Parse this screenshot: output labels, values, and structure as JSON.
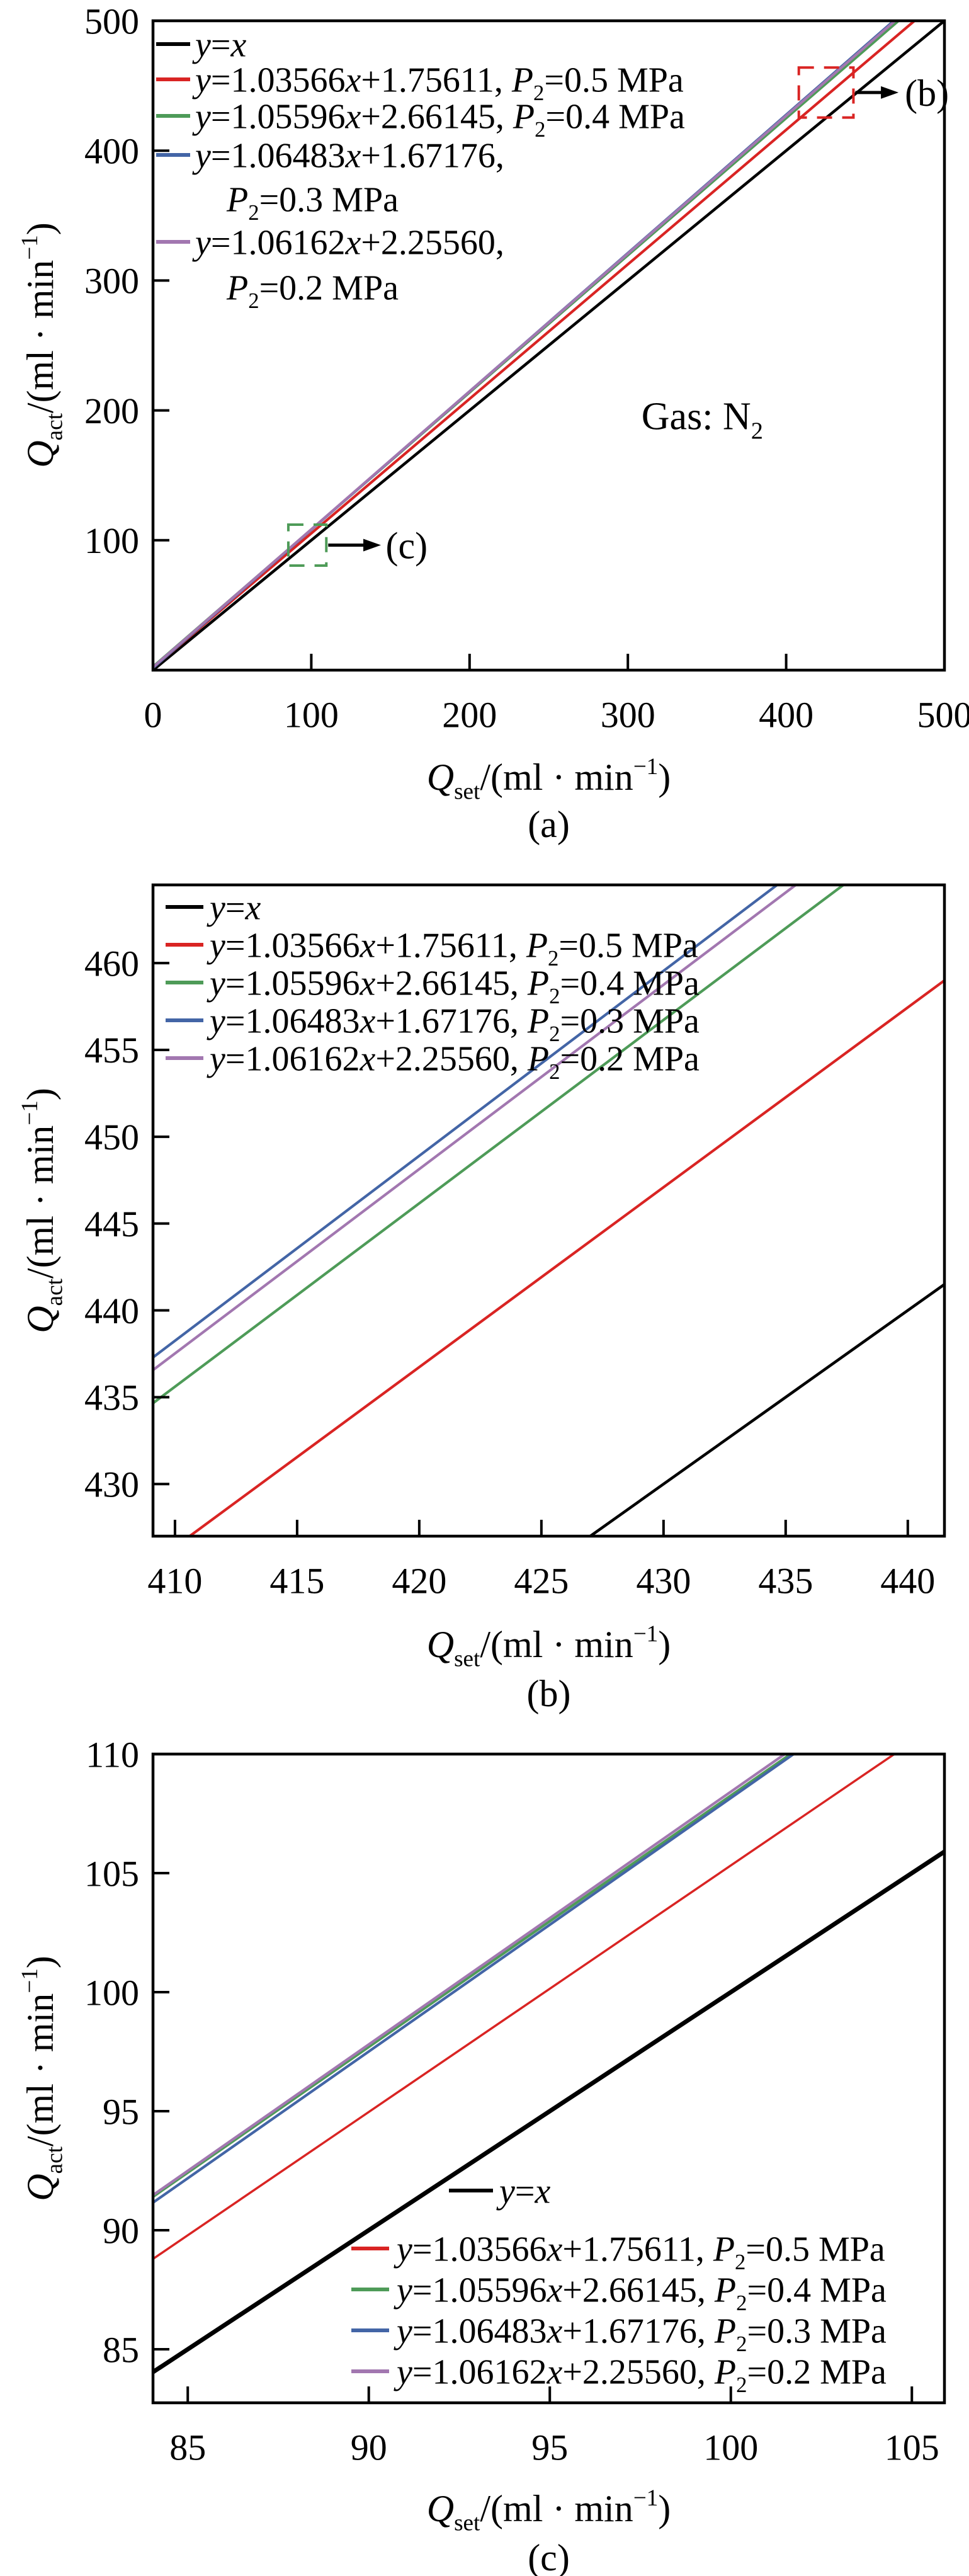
{
  "colors": {
    "black": "#000000",
    "red": "#d92423",
    "green": "#4e9b58",
    "blue": "#4365a6",
    "purple": "#a277b0"
  },
  "chart_data": [
    {
      "panel": "(a)",
      "type": "line",
      "xlabel": "Q_{set}/(ml · min^{−1})",
      "ylabel": "Q_{act}/(ml · min^{−1})",
      "xlim": [
        0,
        500
      ],
      "ylim": [
        0,
        500
      ],
      "xticks": [
        0,
        100,
        200,
        300,
        400,
        500
      ],
      "yticks": [
        100,
        200,
        300,
        400,
        500
      ],
      "grid": false,
      "legend_position": "top-left",
      "lines": [
        {
          "name": "y=x",
          "slope": 1.0,
          "intercept": 0.0,
          "color": "black",
          "width": 4.5
        },
        {
          "name": "P2=0.5 MPa",
          "slope": 1.03566,
          "intercept": 1.75611,
          "color": "red",
          "width": 4.2
        },
        {
          "name": "P2=0.4 MPa",
          "slope": 1.05596,
          "intercept": 2.66145,
          "color": "green",
          "width": 4.2
        },
        {
          "name": "P2=0.3 MPa",
          "slope": 1.06483,
          "intercept": 1.67176,
          "color": "blue",
          "width": 4.2
        },
        {
          "name": "P2=0.2 MPa",
          "slope": 1.06162,
          "intercept": 2.2556,
          "color": "purple",
          "width": 4.2
        }
      ],
      "legend": [
        {
          "swatch": "black",
          "text": "y=x"
        },
        {
          "swatch": "red",
          "text": "y=1.03566x+1.75611, P_{2}=0.5 MPa"
        },
        {
          "swatch": "green",
          "text": "y=1.05596x+2.66145, P_{2}=0.4 MPa"
        },
        {
          "swatch": "blue",
          "text": "y=1.06483x+1.67176,"
        },
        {
          "swatch": null,
          "text": "P_{2}=0.3 MPa"
        },
        {
          "swatch": "purple",
          "text": "y=1.06162x+2.25560,"
        },
        {
          "swatch": null,
          "text": "P_{2}=0.2 MPa"
        }
      ],
      "annotation": {
        "text": "Gas: N_{2}",
        "x": 347,
        "y": 196
      },
      "zoom_boxes": [
        {
          "label": "(b)",
          "color": "red",
          "x": [
            408,
            442.5
          ],
          "y": [
            425.5,
            464
          ],
          "arrow_to_x": 471,
          "label_x": 475
        },
        {
          "label": "(c)",
          "color": "green",
          "x": [
            85.5,
            109.5
          ],
          "y": [
            80.5,
            112
          ],
          "arrow_to_x": 144,
          "label_x": 147
        }
      ]
    },
    {
      "panel": "(b)",
      "type": "line",
      "xlabel": "Q_{set}/(ml · min^{−1})",
      "ylabel": "Q_{act}/(ml · min^{−1})",
      "xlim": [
        409.1,
        441.5
      ],
      "ylim": [
        427.0,
        464.5
      ],
      "xticks": [
        410,
        415,
        420,
        425,
        430,
        435,
        440
      ],
      "yticks": [
        430,
        435,
        440,
        445,
        450,
        455,
        460
      ],
      "grid": false,
      "legend_position": "top-left",
      "lines": [
        {
          "name": "y=x",
          "slope": 1.0,
          "intercept": 0.0,
          "color": "black",
          "width": 4.5
        },
        {
          "name": "P2=0.5 MPa",
          "slope": 1.03566,
          "intercept": 1.75611,
          "color": "red",
          "width": 4.2
        },
        {
          "name": "P2=0.4 MPa",
          "slope": 1.05596,
          "intercept": 2.66145,
          "color": "green",
          "width": 4.2
        },
        {
          "name": "P2=0.3 MPa",
          "slope": 1.06483,
          "intercept": 1.67176,
          "color": "blue",
          "width": 4.2
        },
        {
          "name": "P2=0.2 MPa",
          "slope": 1.06162,
          "intercept": 2.2556,
          "color": "purple",
          "width": 4.2
        }
      ],
      "legend": [
        {
          "swatch": "black",
          "text": "y=x"
        },
        {
          "swatch": "red",
          "text": "y=1.03566x+1.75611, P_{2}=0.5 MPa"
        },
        {
          "swatch": "green",
          "text": "y=1.05596x+2.66145, P_{2}=0.4 MPa"
        },
        {
          "swatch": "blue",
          "text": "y=1.06483x+1.67176, P_{2}=0.3 MPa"
        },
        {
          "swatch": "purple",
          "text": "y=1.06162x+2.25560, P_{2}=0.2 MPa"
        }
      ],
      "annotation": null,
      "zoom_boxes": []
    },
    {
      "panel": "(c)",
      "type": "line",
      "xlabel": "Q_{set}/(ml · min^{−1})",
      "ylabel": "Q_{act}/(ml · min^{−1})",
      "xlim": [
        84.04,
        105.9
      ],
      "ylim": [
        82.75,
        110
      ],
      "xticks": [
        85,
        90,
        95,
        100,
        105
      ],
      "yticks": [
        85,
        90,
        95,
        100,
        105,
        110
      ],
      "grid": false,
      "legend_position": "center-right",
      "lines": [
        {
          "name": "y=x",
          "slope": 1.0,
          "intercept": 0.0,
          "color": "black",
          "width": 7
        },
        {
          "name": "P2=0.5 MPa",
          "slope": 1.03566,
          "intercept": 1.75611,
          "color": "red",
          "width": 3.5
        },
        {
          "name": "P2=0.4 MPa",
          "slope": 1.05596,
          "intercept": 2.66145,
          "color": "green",
          "width": 4.2
        },
        {
          "name": "P2=0.3 MPa",
          "slope": 1.06483,
          "intercept": 1.67176,
          "color": "blue",
          "width": 4.2
        },
        {
          "name": "P2=0.2 MPa",
          "slope": 1.06162,
          "intercept": 2.2556,
          "color": "purple",
          "width": 4.2
        }
      ],
      "legend": [
        {
          "swatch": "black",
          "text": "y=x"
        },
        {
          "swatch": "red",
          "text": "y=1.03566x+1.75611, P_{2}=0.5 MPa"
        },
        {
          "swatch": "green",
          "text": "y=1.05596x+2.66145, P_{2}=0.4 MPa"
        },
        {
          "swatch": "blue",
          "text": "y=1.06483x+1.67176, P_{2}=0.3 MPa"
        },
        {
          "swatch": "purple",
          "text": "y=1.06162x+2.25560, P_{2}=0.2 MPa"
        }
      ],
      "annotation": null,
      "zoom_boxes": []
    }
  ]
}
